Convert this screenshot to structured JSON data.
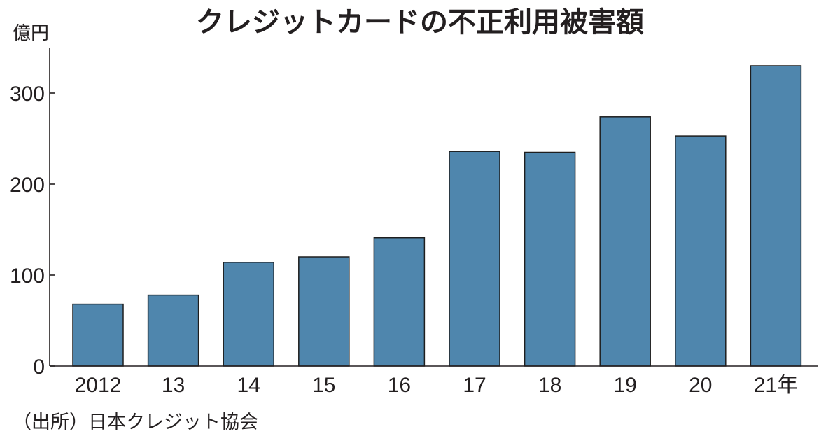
{
  "chart_data": {
    "type": "bar",
    "title": "クレジットカードの不正利用被害額",
    "ylabel": "億円",
    "categories": [
      "2012",
      "13",
      "14",
      "15",
      "16",
      "17",
      "18",
      "19",
      "20",
      "21年"
    ],
    "values": [
      68,
      78,
      114,
      120,
      141,
      236,
      235,
      274,
      253,
      330
    ],
    "ylim": [
      0,
      350
    ],
    "yticks": [
      0,
      100,
      200,
      300
    ],
    "grid": false,
    "legend": "none",
    "source": "（出所）日本クレジット協会",
    "colors": {
      "bar": "#4f86ad",
      "axis": "#231f20"
    }
  }
}
